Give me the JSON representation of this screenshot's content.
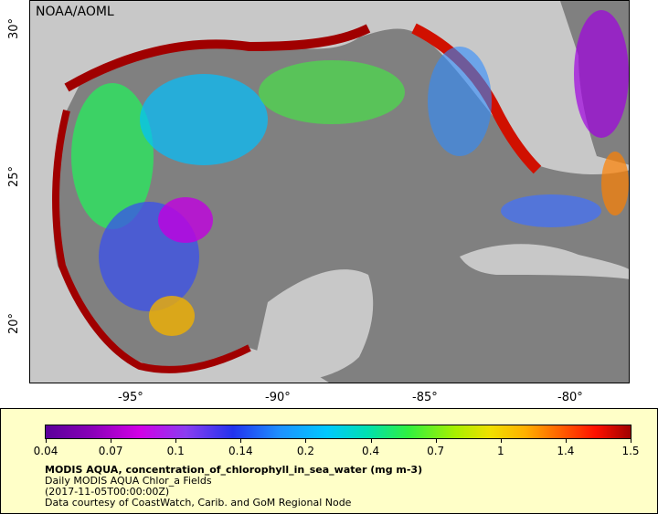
{
  "credit": "NOAA/AOML",
  "lat_labels": [
    "30°",
    "25°",
    "20°"
  ],
  "lon_labels": [
    "-95°",
    "-90°",
    "-85°",
    "-80°"
  ],
  "colorbar": {
    "ticks": [
      "0.04",
      "0.07",
      "0.1",
      "0.14",
      "0.2",
      "0.4",
      "0.7",
      "1",
      "1.4",
      "1.5"
    ]
  },
  "caption": {
    "title": "MODIS AQUA, concentration_of_chlorophyll_in_sea_water (mg m-3)",
    "subtitle": "Daily MODIS AQUA Chlor_a Fields",
    "timestamp": "(2017-11-05T00:00:00Z)",
    "source": "Data courtesy of CoastWatch, Carib. and GoM Regional Node"
  },
  "colors": {
    "land": "#c8c8c8",
    "no_data": "#808080",
    "legend_bg": "#ffffc8"
  }
}
